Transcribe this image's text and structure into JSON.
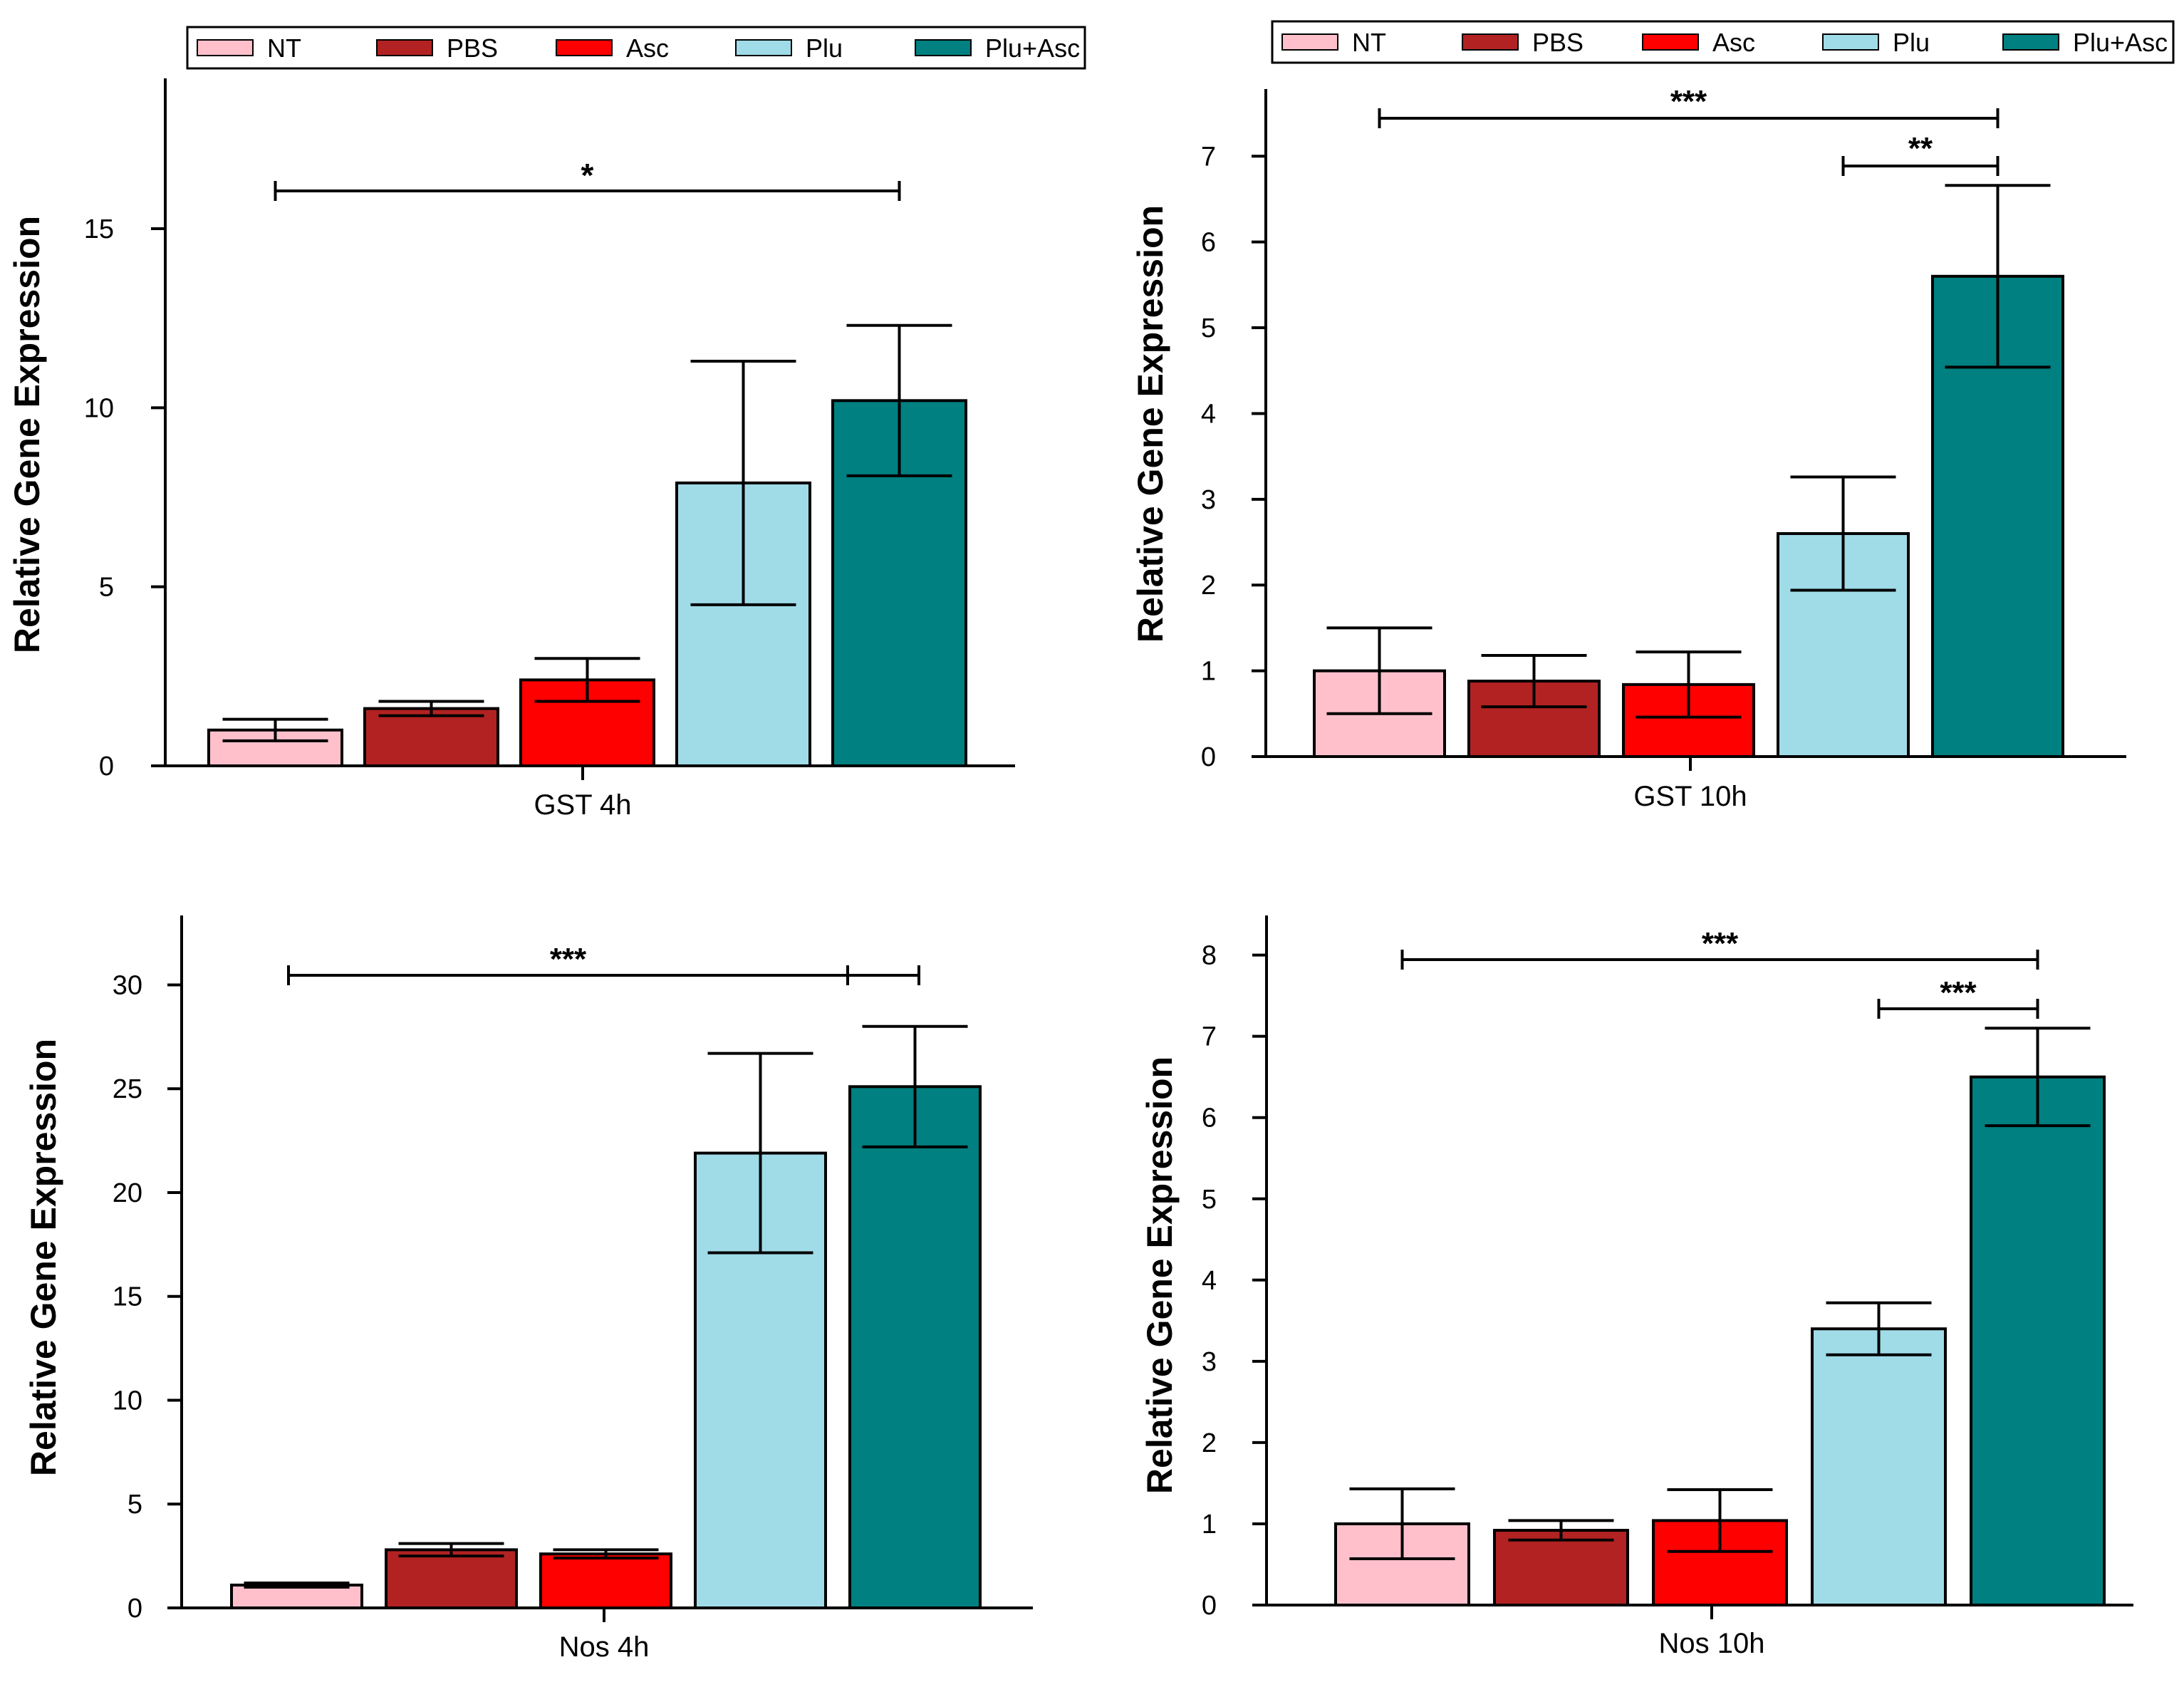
{
  "colors": {
    "NT": "#ffc0cb",
    "PBS": "#b22222",
    "Asc": "#ff0000",
    "Plu": "#a0dbe8",
    "Plu+Asc": "#008080",
    "axis": "#000000"
  },
  "chart_data": [
    {
      "type": "bar",
      "title": "",
      "xlabel": "GST 4h",
      "ylabel": "Relative Gene Expression",
      "ylim": [
        0,
        19
      ],
      "yticks": [
        0,
        5,
        10,
        15
      ],
      "legend": [
        "NT",
        "PBS",
        "Asc",
        "Plu",
        "Plu+Asc"
      ],
      "categories": [
        "NT",
        "PBS",
        "Asc",
        "Plu",
        "Plu+Asc"
      ],
      "values": [
        1.0,
        1.6,
        2.4,
        7.9,
        10.2
      ],
      "errors": [
        0.3,
        0.2,
        0.6,
        3.4,
        2.1
      ],
      "significance": [
        {
          "from": "NT",
          "to": "Plu+Asc",
          "label": "*"
        }
      ]
    },
    {
      "type": "bar",
      "title": "",
      "xlabel": "GST 10h",
      "ylabel": "Relative Gene Expression",
      "ylim": [
        0,
        7.7
      ],
      "yticks": [
        0,
        1,
        2,
        3,
        4,
        5,
        6,
        7
      ],
      "legend": [
        "NT",
        "PBS",
        "Asc",
        "Plu",
        "Plu+Asc"
      ],
      "categories": [
        "NT",
        "PBS",
        "Asc",
        "Plu",
        "Plu+Asc"
      ],
      "values": [
        1.0,
        0.88,
        0.84,
        2.6,
        5.6
      ],
      "errors": [
        0.5,
        0.3,
        0.38,
        0.66,
        1.06
      ],
      "significance": [
        {
          "from": "NT",
          "to": "Plu+Asc",
          "label": "***"
        },
        {
          "from": "Plu",
          "to": "Plu+Asc",
          "label": "**"
        }
      ]
    },
    {
      "type": "bar",
      "title": "",
      "xlabel": "Nos 4h",
      "ylabel": "Relative Gene Expression",
      "ylim": [
        0,
        33
      ],
      "yticks": [
        0,
        5,
        10,
        15,
        20,
        25,
        30
      ],
      "categories": [
        "NT",
        "PBS",
        "Asc",
        "Plu",
        "Plu+Asc"
      ],
      "values": [
        1.1,
        2.8,
        2.6,
        21.9,
        25.1
      ],
      "errors": [
        0.1,
        0.3,
        0.2,
        4.8,
        2.9
      ],
      "significance": [
        {
          "from": "NT",
          "to": "Plu+Asc",
          "label": "***"
        }
      ]
    },
    {
      "type": "bar",
      "title": "",
      "xlabel": "Nos 10h",
      "ylabel": "Relative Gene Expression",
      "ylim": [
        0,
        8.4
      ],
      "yticks": [
        0,
        1,
        2,
        3,
        4,
        5,
        6,
        7,
        8
      ],
      "categories": [
        "NT",
        "PBS",
        "Asc",
        "Plu",
        "Plu+Asc"
      ],
      "values": [
        1.0,
        0.92,
        1.04,
        3.4,
        6.5
      ],
      "errors": [
        0.43,
        0.12,
        0.38,
        0.32,
        0.6
      ],
      "significance": [
        {
          "from": "NT",
          "to": "Plu+Asc",
          "label": "***"
        },
        {
          "from": "Plu",
          "to": "Plu+Asc",
          "label": "***"
        }
      ]
    }
  ]
}
